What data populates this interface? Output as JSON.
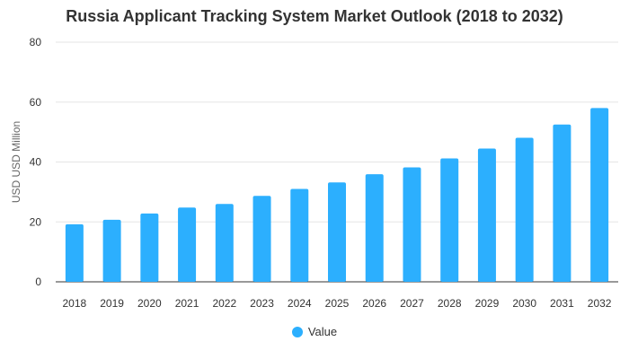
{
  "chart_data": {
    "type": "bar",
    "title": "Russia Applicant Tracking System Market Outlook (2018 to 2032)",
    "xlabel": "",
    "ylabel": "USD USD Million",
    "categories": [
      "2018",
      "2019",
      "2020",
      "2021",
      "2022",
      "2023",
      "2024",
      "2025",
      "2026",
      "2027",
      "2028",
      "2029",
      "2030",
      "2031",
      "2032"
    ],
    "series": [
      {
        "name": "Value",
        "values": [
          19.2,
          20.7,
          22.8,
          24.8,
          26.0,
          28.7,
          31.0,
          33.2,
          35.9,
          38.2,
          41.2,
          44.5,
          48.1,
          52.5,
          58.0
        ],
        "color": "#2caffe"
      }
    ],
    "ylim": [
      0,
      80
    ],
    "yticks": [
      0,
      20,
      40,
      60,
      80
    ],
    "grid": true,
    "legend_placement": "bottom-center"
  }
}
